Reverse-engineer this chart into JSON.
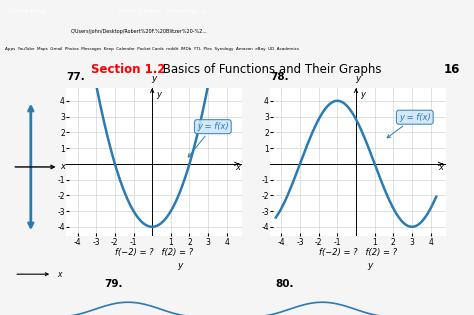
{
  "bg_color": "#e8e8e8",
  "browser_bar_color": "#2b2b2b",
  "page_bg": "#f5f5f5",
  "graph_bg": "#ffffff",
  "curve_color": "#2a7ab5",
  "label_color": "#2a7ab5",
  "label_bg": "#cce4f7",
  "grid_color": "#c8c8c8",
  "axis_color": "#000000",
  "title_section": "Section 1.2",
  "title_rest": " Basics of Functions and Their Graphs",
  "page_num": "16",
  "graph77_label": "77.",
  "graph78_label": "78.",
  "ylabel": "y",
  "xlabel": "x",
  "annotation77": "y = f(x)",
  "annotation78": "y = f(x)",
  "bottom_text77": "f(−2) = ?   f(2) = ?",
  "bottom_text78": "f(−2) = ?   f(2) = ?",
  "label79": "79.",
  "label80": "80.",
  "xlim": [
    -4.6,
    4.8
  ],
  "ylim": [
    -4.6,
    4.8
  ],
  "xticks": [
    -4,
    -3,
    -2,
    -1,
    1,
    2,
    3,
    4
  ],
  "yticks": [
    -4,
    -3,
    -2,
    -1,
    1,
    2,
    3,
    4
  ],
  "curve_lw": 1.8,
  "left_arrow_color": "#2a7ab5"
}
